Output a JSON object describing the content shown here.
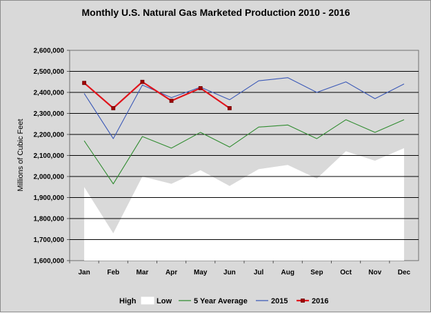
{
  "chart_data": {
    "type": "line",
    "title": "Monthly U.S. Natural Gas Marketed Production 2010 - 2016",
    "xlabel": "",
    "ylabel": "Millions of Cubic Feet",
    "categories": [
      "Jan",
      "Feb",
      "Mar",
      "Apr",
      "May",
      "Jun",
      "Jul",
      "Aug",
      "Sep",
      "Oct",
      "Nov",
      "Dec"
    ],
    "ylim": [
      1600000,
      2600000
    ],
    "yticks": [
      "1,600,000",
      "1,700,000",
      "1,800,000",
      "1,900,000",
      "2,000,000",
      "2,100,000",
      "2,200,000",
      "2,300,000",
      "2,400,000",
      "2,500,000",
      "2,600,000"
    ],
    "grid": true,
    "legend_position": "bottom",
    "series": [
      {
        "name": "High",
        "kind": "area",
        "color": "#d9d9d9",
        "values": [
          2395000,
          2180000,
          2435000,
          2375000,
          2425000,
          2365000,
          2455000,
          2470000,
          2400000,
          2450000,
          2370000,
          2440000
        ]
      },
      {
        "name": "Low",
        "kind": "area",
        "color": "#ffffff",
        "values": [
          1950000,
          1730000,
          2000000,
          1965000,
          2030000,
          1955000,
          2035000,
          2055000,
          1990000,
          2120000,
          2075000,
          2135000
        ]
      },
      {
        "name": "5 Year Average",
        "kind": "line",
        "color": "#2e8b2e",
        "values": [
          2170000,
          1965000,
          2190000,
          2135000,
          2210000,
          2140000,
          2235000,
          2245000,
          2180000,
          2270000,
          2210000,
          2270000
        ]
      },
      {
        "name": "2015",
        "kind": "line",
        "color": "#3a58b7",
        "values": [
          2395000,
          2180000,
          2435000,
          2375000,
          2425000,
          2365000,
          2455000,
          2470000,
          2400000,
          2450000,
          2370000,
          2440000
        ]
      },
      {
        "name": "2016",
        "kind": "line-marker",
        "color": "#e0141c",
        "values": [
          2445000,
          2325000,
          2450000,
          2360000,
          2420000,
          2325000,
          null,
          null,
          null,
          null,
          null,
          null
        ]
      }
    ]
  }
}
